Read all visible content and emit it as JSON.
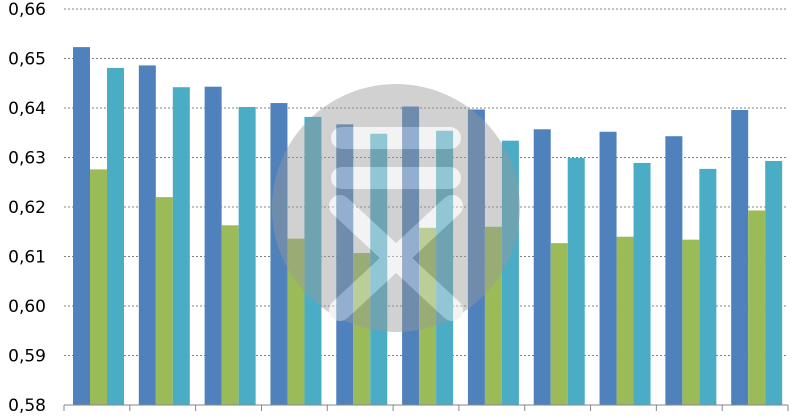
{
  "chart_data": {
    "type": "bar",
    "title": "",
    "xlabel": "",
    "ylabel": "",
    "ylim": [
      0.58,
      0.66
    ],
    "yticks": [
      0.58,
      0.59,
      0.6,
      0.61,
      0.62,
      0.63,
      0.64,
      0.65,
      0.66
    ],
    "ytick_labels": [
      "0,58",
      "0,59",
      "0,60",
      "0,61",
      "0,62",
      "0,63",
      "0,64",
      "0,65",
      "0,66"
    ],
    "grid": "horizontal-dotted",
    "legend": "none",
    "categories": [
      "",
      "",
      "",
      "",
      "",
      "",
      "",
      "",
      "",
      "",
      ""
    ],
    "series": [
      {
        "color": "#4F81BD",
        "values": [
          0.6523,
          0.6486,
          0.6443,
          0.641,
          0.6367,
          0.6403,
          0.6397,
          0.6357,
          0.6352,
          0.6343,
          0.6396
        ]
      },
      {
        "color": "#9BBB59",
        "values": [
          0.6276,
          0.622,
          0.6163,
          0.6136,
          0.6107,
          0.6158,
          0.616,
          0.6127,
          0.614,
          0.6134,
          0.6193
        ]
      },
      {
        "color": "#4BACC6",
        "values": [
          0.6481,
          0.6442,
          0.6402,
          0.6382,
          0.6348,
          0.6354,
          0.6334,
          0.6299,
          0.6289,
          0.6277,
          0.6293
        ]
      }
    ]
  },
  "watermark": {
    "icon": "circle-logo-watermark",
    "color": "#9a9a9a"
  }
}
